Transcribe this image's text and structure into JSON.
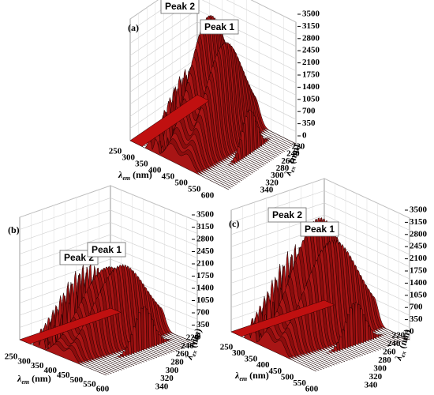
{
  "panels": [
    {
      "label": "(a)",
      "peaks": [
        "Peak 2",
        "Peak 1"
      ],
      "em_axis": {
        "symbol": "λ",
        "sub": "em",
        "unit": "(nm)",
        "ticks": [
          250,
          300,
          350,
          400,
          450,
          500,
          550,
          600
        ]
      },
      "ex_axis": {
        "symbol": "λ",
        "sub": "ex",
        "unit": "(nm)",
        "ticks": [
          220,
          240,
          260,
          280,
          300,
          320,
          340
        ]
      },
      "z_axis": {
        "ticks": [
          0,
          350,
          700,
          1050,
          1400,
          1750,
          2100,
          2450,
          2800,
          3150,
          3500
        ]
      }
    },
    {
      "label": "(b)",
      "peaks": [
        "Peak 2",
        "Peak 1"
      ],
      "em_axis": {
        "symbol": "λ",
        "sub": "em",
        "unit": "(nm)",
        "ticks": [
          250,
          300,
          350,
          400,
          450,
          500,
          550,
          600
        ]
      },
      "ex_axis": {
        "symbol": "λ",
        "sub": "ex",
        "unit": "(nm)",
        "ticks": [
          220,
          240,
          260,
          280,
          300,
          320,
          340
        ]
      },
      "z_axis": {
        "ticks": [
          0,
          350,
          700,
          1050,
          1400,
          1750,
          2100,
          2450,
          2800,
          3150,
          3500
        ]
      }
    },
    {
      "label": "(c)",
      "peaks": [
        "Peak 2",
        "Peak 1"
      ],
      "em_axis": {
        "symbol": "λ",
        "sub": "em",
        "unit": "(nm)",
        "ticks": [
          250,
          300,
          350,
          400,
          450,
          500,
          550,
          600
        ]
      },
      "ex_axis": {
        "symbol": "λ",
        "sub": "ex",
        "unit": "(nm)",
        "ticks": [
          220,
          240,
          260,
          280,
          300,
          320,
          340
        ]
      },
      "z_axis": {
        "ticks": [
          0,
          350,
          700,
          1050,
          1400,
          1750,
          2100,
          2450,
          2800,
          3150,
          3500
        ]
      }
    }
  ]
}
